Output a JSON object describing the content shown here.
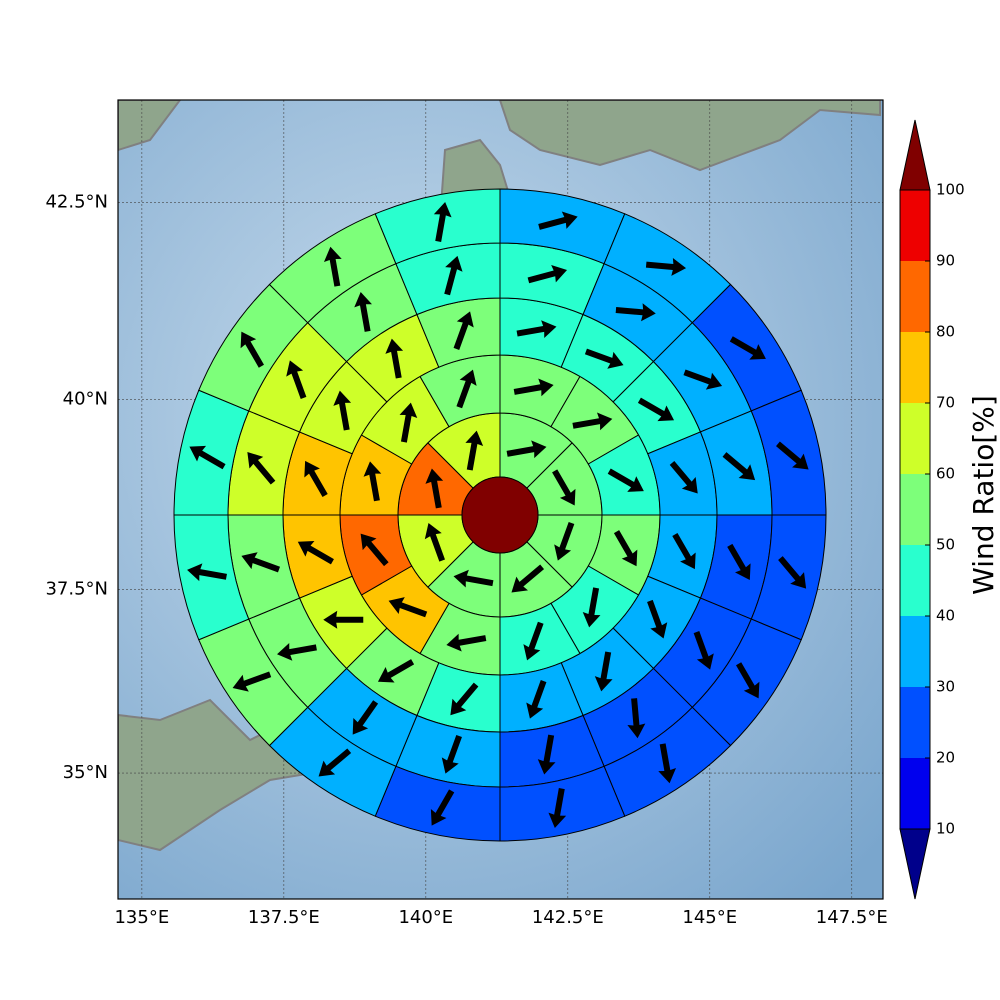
{
  "chart_data": {
    "type": "polar",
    "xticks": [
      {
        "value": 135,
        "label": "135°E"
      },
      {
        "value": 137.5,
        "label": "137.5°E"
      },
      {
        "value": 140,
        "label": "140°E"
      },
      {
        "value": 142.5,
        "label": "142.5°E"
      },
      {
        "value": 145,
        "label": "145°E"
      },
      {
        "value": 147.5,
        "label": "147.5°E"
      }
    ],
    "yticks": [
      {
        "value": 35,
        "label": "35°N"
      },
      {
        "value": 37.5,
        "label": "37.5°N"
      },
      {
        "value": 40,
        "label": "40°N"
      },
      {
        "value": 42.5,
        "label": "42.5°N"
      }
    ],
    "xlim": [
      134.58,
      148.05
    ],
    "ylim": [
      33.24,
      43.76
    ],
    "grid": true,
    "center_value": 100,
    "rings": [
      {
        "values": [
          55,
          55,
          55,
          55,
          55,
          65,
          85,
          65
        ],
        "directions": [
          80,
          150,
          200,
          230,
          280,
          340,
          350,
          10
        ]
      },
      {
        "values": [
          55,
          55,
          45,
          55,
          45,
          45,
          55,
          75,
          85,
          75,
          65,
          55
        ],
        "directions": [
          80,
          80,
          120,
          150,
          190,
          200,
          260,
          290,
          320,
          350,
          10,
          20
        ]
      },
      {
        "values": [
          45,
          45,
          45,
          35,
          35,
          35,
          35,
          35,
          45,
          55,
          65,
          75,
          75,
          65,
          65,
          55
        ],
        "directions": [
          80,
          110,
          120,
          140,
          150,
          160,
          190,
          200,
          220,
          240,
          270,
          300,
          330,
          350,
          350,
          20
        ]
      },
      {
        "values": [
          45,
          35,
          35,
          35,
          25,
          25,
          25,
          25,
          35,
          35,
          55,
          55,
          65,
          65,
          55,
          45
        ],
        "directions": [
          75,
          95,
          110,
          130,
          150,
          160,
          175,
          190,
          200,
          215,
          260,
          290,
          320,
          340,
          350,
          15
        ]
      },
      {
        "values": [
          35,
          35,
          25,
          25,
          25,
          25,
          25,
          25,
          25,
          35,
          55,
          45,
          45,
          55,
          55,
          45
        ],
        "directions": [
          75,
          95,
          120,
          130,
          140,
          150,
          170,
          190,
          210,
          230,
          250,
          280,
          300,
          330,
          350,
          10
        ]
      }
    ],
    "colorbar": {
      "label": "Wind Ratio[%]",
      "ticks": [
        10,
        20,
        30,
        40,
        50,
        60,
        70,
        80,
        90,
        100
      ],
      "colors": [
        "#0000ee",
        "#0050ff",
        "#00b0ff",
        "#29ffce",
        "#7dff7a",
        "#ceff29",
        "#ffc400",
        "#ff6800",
        "#ee0000"
      ],
      "under": "#00008b",
      "over": "#800000"
    }
  }
}
